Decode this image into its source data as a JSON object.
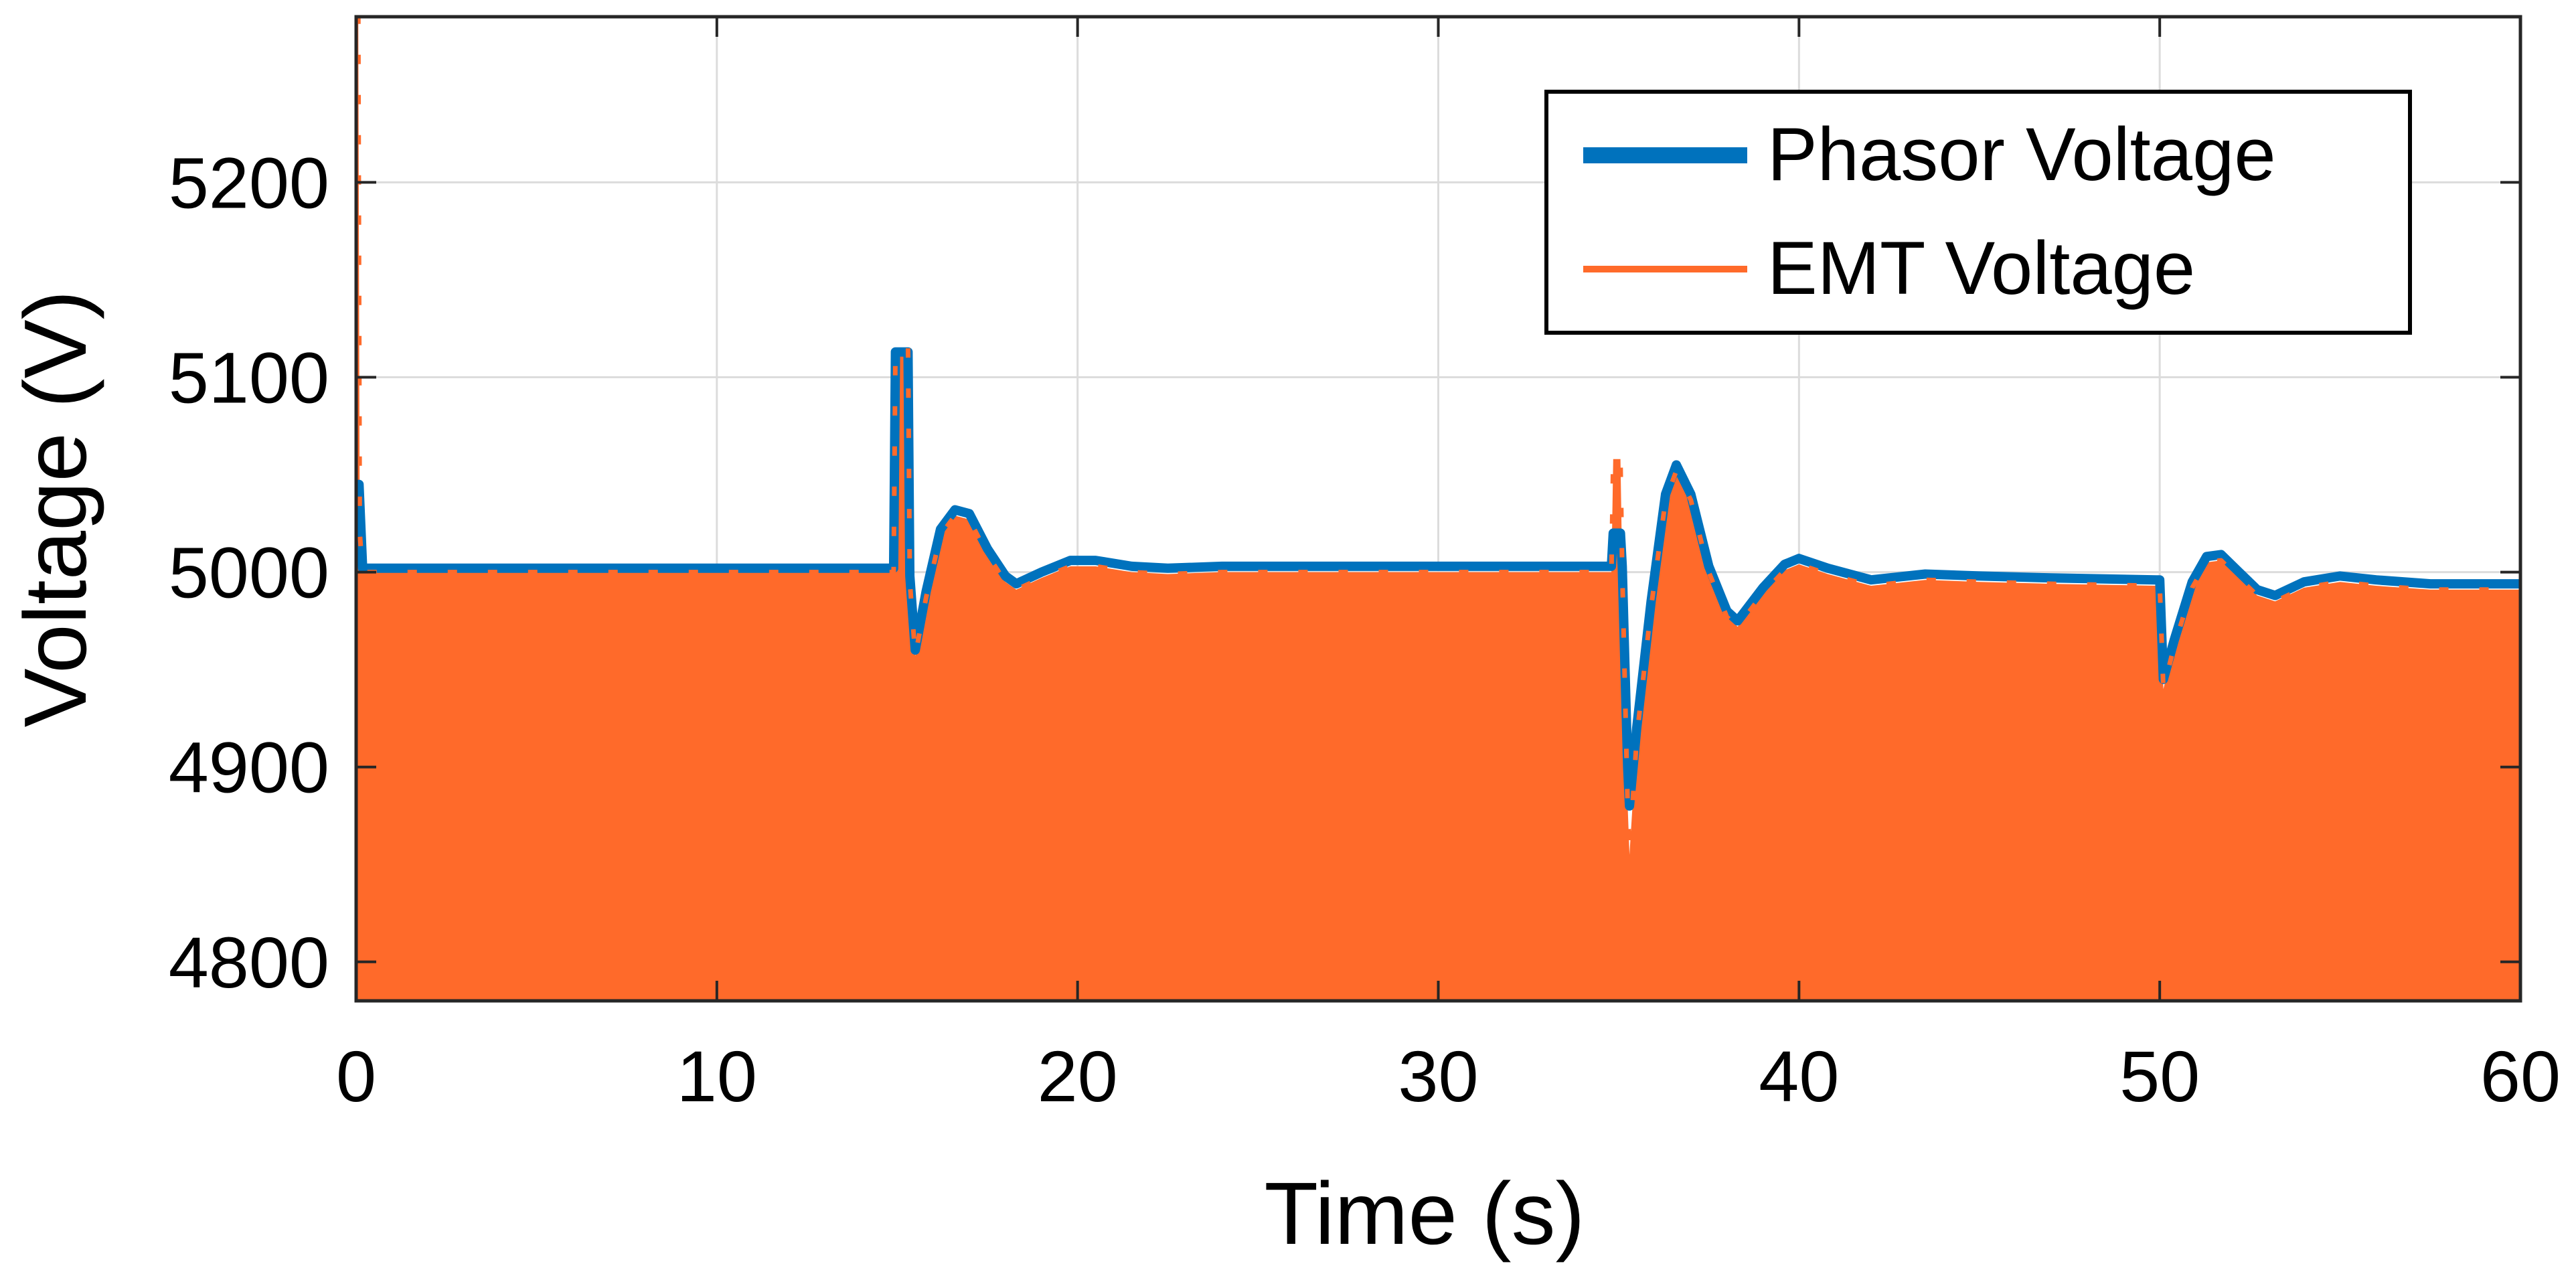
{
  "chart_data": {
    "type": "area",
    "title": "",
    "xlabel": "Time (s)",
    "ylabel": "Voltage (V)",
    "xlim": [
      0,
      60
    ],
    "ylim": [
      4780,
      5285
    ],
    "xticks": [
      0,
      10,
      20,
      30,
      40,
      50,
      60
    ],
    "yticks": [
      4800,
      4900,
      5000,
      5100,
      5200
    ],
    "grid": true,
    "legend_position": "top-right",
    "series": [
      {
        "name": "Phasor Voltage",
        "color": "#0072BD",
        "style": "line-thick",
        "points": [
          [
            0.0,
            5045
          ],
          [
            0.08,
            5045
          ],
          [
            0.18,
            5002
          ],
          [
            1,
            5002
          ],
          [
            5,
            5002
          ],
          [
            10,
            5002
          ],
          [
            14.8,
            5002
          ],
          [
            14.9,
            5002
          ],
          [
            14.95,
            5113
          ],
          [
            15.3,
            5113
          ],
          [
            15.35,
            4998
          ],
          [
            15.5,
            4960
          ],
          [
            15.8,
            4990
          ],
          [
            16.2,
            5022
          ],
          [
            16.6,
            5032
          ],
          [
            17.0,
            5030
          ],
          [
            17.5,
            5012
          ],
          [
            18.0,
            4998
          ],
          [
            18.3,
            4994
          ],
          [
            19.0,
            5000
          ],
          [
            19.8,
            5006
          ],
          [
            20.5,
            5006
          ],
          [
            21.5,
            5003
          ],
          [
            22.5,
            5002
          ],
          [
            24,
            5003
          ],
          [
            27,
            5003
          ],
          [
            30,
            5003
          ],
          [
            32,
            5003
          ],
          [
            34.8,
            5003
          ],
          [
            34.85,
            5020
          ],
          [
            35.05,
            5020
          ],
          [
            35.1,
            5003
          ],
          [
            35.25,
            4900
          ],
          [
            35.3,
            4880
          ],
          [
            35.5,
            4920
          ],
          [
            35.9,
            4985
          ],
          [
            36.3,
            5040
          ],
          [
            36.6,
            5055
          ],
          [
            37.0,
            5040
          ],
          [
            37.5,
            5003
          ],
          [
            38.0,
            4980
          ],
          [
            38.3,
            4975
          ],
          [
            39.0,
            4992
          ],
          [
            39.6,
            5004
          ],
          [
            40.0,
            5007
          ],
          [
            40.8,
            5002
          ],
          [
            42,
            4996
          ],
          [
            43.5,
            4999
          ],
          [
            45,
            4998
          ],
          [
            47,
            4997
          ],
          [
            49.9,
            4996
          ],
          [
            50.0,
            4996
          ],
          [
            50.1,
            4945
          ],
          [
            50.4,
            4965
          ],
          [
            50.9,
            4995
          ],
          [
            51.3,
            5008
          ],
          [
            51.7,
            5009
          ],
          [
            52.2,
            5000
          ],
          [
            52.7,
            4991
          ],
          [
            53.2,
            4988
          ],
          [
            54.0,
            4995
          ],
          [
            55.0,
            4998
          ],
          [
            56.0,
            4996
          ],
          [
            57.5,
            4994
          ],
          [
            60.0,
            4994
          ]
        ]
      },
      {
        "name": "EMT Voltage",
        "color": "#FF6A2A",
        "style": "filled-oscillation",
        "points": [
          [
            0.0,
            5285
          ],
          [
            0.06,
            5285
          ],
          [
            0.1,
            5020
          ],
          [
            0.18,
            5000
          ],
          [
            1,
            5000
          ],
          [
            5,
            5000
          ],
          [
            10,
            5000
          ],
          [
            14.8,
            5000
          ],
          [
            14.9,
            5000
          ],
          [
            14.95,
            5115
          ],
          [
            15.3,
            5115
          ],
          [
            15.35,
            4995
          ],
          [
            15.5,
            4957
          ],
          [
            15.8,
            4987
          ],
          [
            16.2,
            5019
          ],
          [
            16.6,
            5029
          ],
          [
            17.0,
            5027
          ],
          [
            17.5,
            5009
          ],
          [
            18.0,
            4995
          ],
          [
            18.3,
            4991
          ],
          [
            19.0,
            4997
          ],
          [
            19.8,
            5003
          ],
          [
            20.5,
            5003
          ],
          [
            21.5,
            5000
          ],
          [
            22.5,
            4999
          ],
          [
            24,
            5000
          ],
          [
            27,
            5000
          ],
          [
            30,
            5000
          ],
          [
            32,
            5000
          ],
          [
            34.8,
            5000
          ],
          [
            34.85,
            5058
          ],
          [
            35.05,
            5058
          ],
          [
            35.1,
            5000
          ],
          [
            35.25,
            4880
          ],
          [
            35.3,
            4855
          ],
          [
            35.5,
            4915
          ],
          [
            35.9,
            4982
          ],
          [
            36.3,
            5037
          ],
          [
            36.6,
            5052
          ],
          [
            37.0,
            5037
          ],
          [
            37.5,
            5000
          ],
          [
            38.0,
            4977
          ],
          [
            38.3,
            4972
          ],
          [
            39.0,
            4989
          ],
          [
            39.6,
            5001
          ],
          [
            40.0,
            5004
          ],
          [
            40.8,
            4999
          ],
          [
            42,
            4993
          ],
          [
            43.5,
            4996
          ],
          [
            45,
            4995
          ],
          [
            47,
            4994
          ],
          [
            49.9,
            4993
          ],
          [
            50.0,
            4993
          ],
          [
            50.1,
            4940
          ],
          [
            50.4,
            4962
          ],
          [
            50.9,
            4992
          ],
          [
            51.3,
            5005
          ],
          [
            51.7,
            5006
          ],
          [
            52.2,
            4997
          ],
          [
            52.7,
            4988
          ],
          [
            53.2,
            4985
          ],
          [
            54.0,
            4992
          ],
          [
            55.0,
            4995
          ],
          [
            56.0,
            4993
          ],
          [
            57.5,
            4991
          ],
          [
            60.0,
            4991
          ]
        ]
      }
    ]
  }
}
